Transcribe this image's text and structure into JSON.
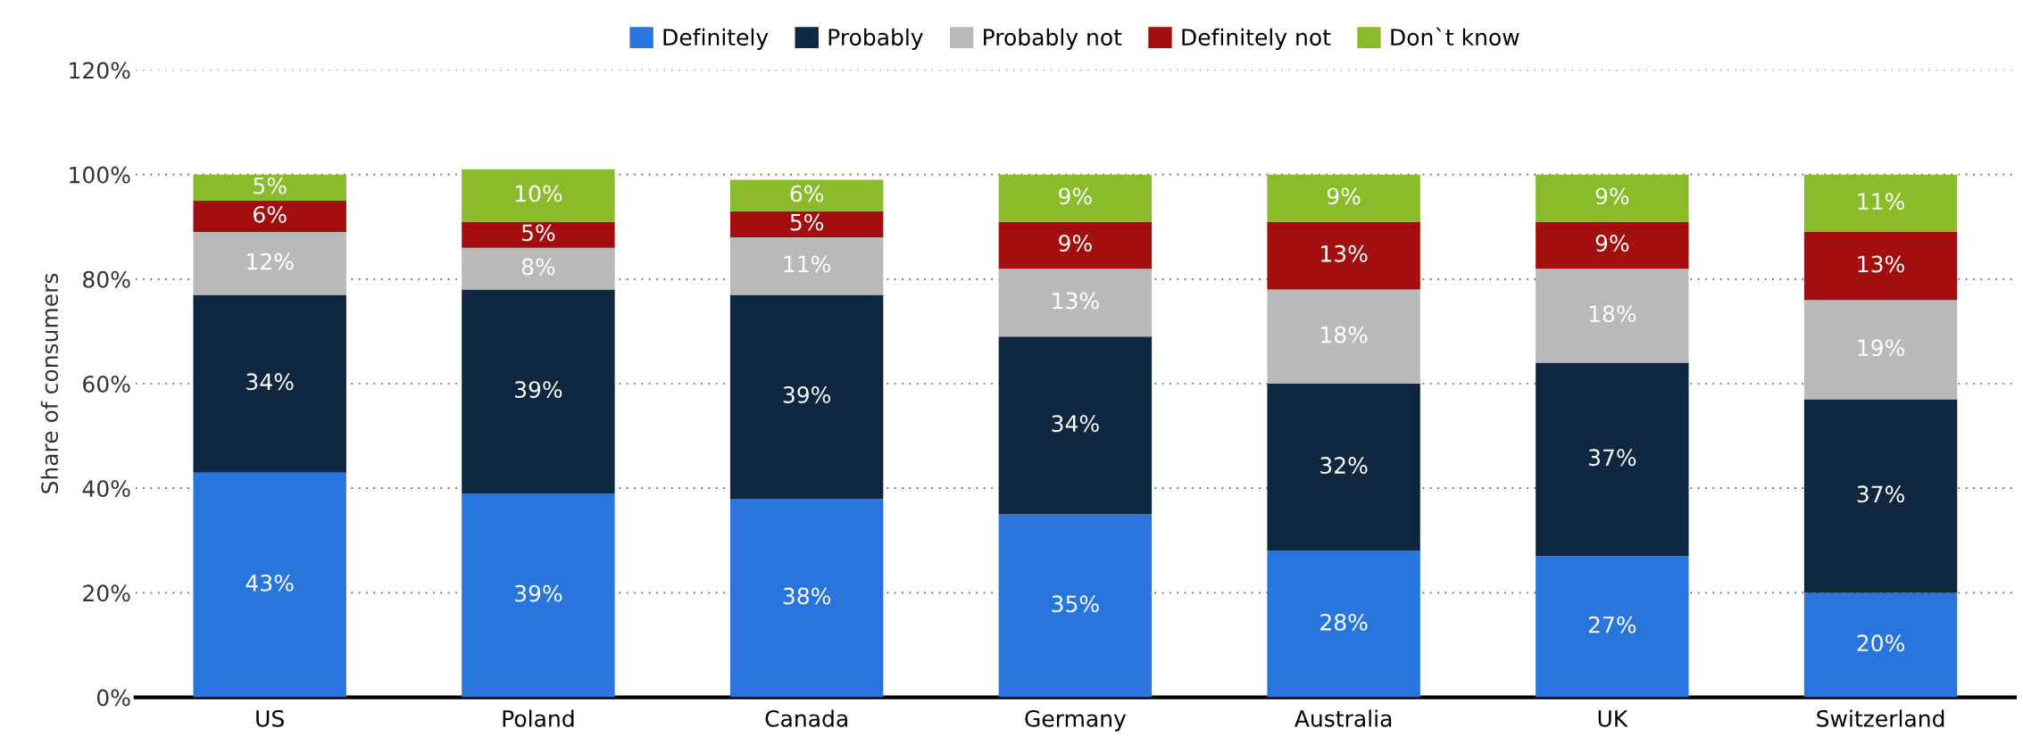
{
  "chart_data": {
    "type": "bar",
    "stacked": true,
    "ylabel": "Share of consumers",
    "categories": [
      "US",
      "Poland",
      "Canada",
      "Germany",
      "Australia",
      "UK",
      "Switzerland"
    ],
    "series": [
      {
        "name": "Definitely",
        "color": "#2876dd",
        "values": [
          43,
          39,
          38,
          35,
          28,
          27,
          20
        ],
        "value_labels": [
          "43%",
          "39%",
          "38%",
          "35%",
          "28%",
          "27%",
          "20%"
        ]
      },
      {
        "name": "Probably",
        "color": "#0f2740",
        "values": [
          34,
          39,
          39,
          34,
          32,
          37,
          37
        ],
        "value_labels": [
          "34%",
          "39%",
          "39%",
          "34%",
          "32%",
          "37%",
          "37%"
        ]
      },
      {
        "name": "Probably not",
        "color": "#b9b9b9",
        "values": [
          12,
          8,
          11,
          13,
          18,
          18,
          19
        ],
        "value_labels": [
          "12%",
          "8%",
          "11%",
          "13%",
          "18%",
          "18%",
          "19%"
        ]
      },
      {
        "name": "Definitely not",
        "color": "#a30e0e",
        "values": [
          6,
          5,
          5,
          9,
          13,
          9,
          13
        ],
        "value_labels": [
          "6%",
          "5%",
          "5%",
          "9%",
          "13%",
          "9%",
          "13%"
        ]
      },
      {
        "name": "Don`t know",
        "color": "#8abb2a",
        "values": [
          5,
          10,
          6,
          9,
          9,
          9,
          11
        ],
        "value_labels": [
          "5%",
          "10%",
          "6%",
          "9%",
          "9%",
          "9%",
          "11%"
        ]
      }
    ],
    "ylim": [
      0,
      120
    ],
    "yticks": [
      {
        "value": 0,
        "label": "0%"
      },
      {
        "value": 20,
        "label": "20%"
      },
      {
        "value": 40,
        "label": "40%"
      },
      {
        "value": 60,
        "label": "60%"
      },
      {
        "value": 80,
        "label": "80%"
      },
      {
        "value": 100,
        "label": "100%"
      },
      {
        "value": 120,
        "label": "120%"
      }
    ],
    "grid": "y",
    "legend": "top"
  }
}
